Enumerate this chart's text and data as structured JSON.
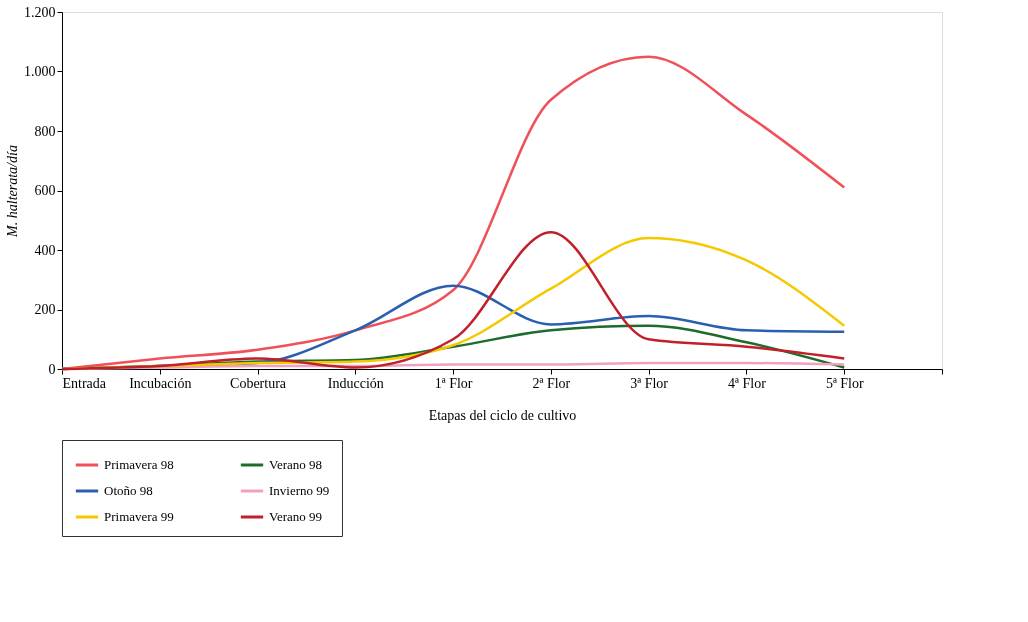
{
  "chart_data": {
    "type": "line",
    "xlabel": "Etapas del ciclo de cultivo",
    "ylabel": "M. halterata/día",
    "categories": [
      "Entrada",
      "Incubación",
      "Cobertura",
      "Inducción",
      "1ª Flor",
      "2ª Flor",
      "3ª Flor",
      "4ª Flor",
      "5ª Flor",
      null
    ],
    "ylim": [
      0,
      1200
    ],
    "yticks": [
      0,
      200,
      400,
      600,
      800,
      {
        "value": 1000,
        "label": "1.000"
      },
      {
        "value": 1200,
        "label": "1.200"
      }
    ],
    "grid": false,
    "legend": "bottom",
    "marker": "none",
    "line_style": "solid",
    "series": [
      {
        "name": "Primavera 98",
        "color": "#f0505a",
        "values": [
          0,
          35,
          65,
          130,
          265,
          905,
          1050,
          855,
          610,
          null
        ]
      },
      {
        "name": "Verano 98",
        "color": "#1e6b2e",
        "values": [
          0,
          10,
          25,
          30,
          75,
          130,
          145,
          90,
          5,
          null
        ]
      },
      {
        "name": "Otoño 98",
        "color": "#2a5fb0",
        "values": [
          0,
          10,
          20,
          130,
          280,
          150,
          178,
          130,
          125,
          null
        ]
      },
      {
        "name": "Invierno 99",
        "color": "#f0a0c0",
        "values": [
          0,
          5,
          10,
          10,
          15,
          15,
          20,
          20,
          15,
          null
        ]
      },
      {
        "name": "Primavera 99",
        "color": "#f5c800",
        "values": [
          0,
          10,
          20,
          25,
          80,
          270,
          440,
          365,
          145,
          null
        ]
      },
      {
        "name": "Verano 99",
        "color": "#c0202a",
        "values": [
          0,
          10,
          35,
          5,
          100,
          460,
          100,
          75,
          35,
          null
        ]
      }
    ]
  }
}
